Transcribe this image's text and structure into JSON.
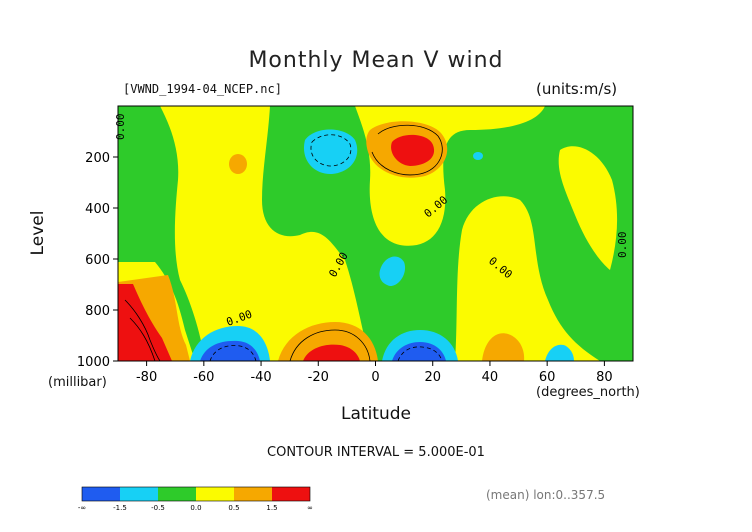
{
  "title": "Monthly Mean V wind",
  "file_label": "[VWND_1994-04_NCEP.nc]",
  "units_label": "(units:m/s)",
  "contour_interval": "CONTOUR INTERVAL = 5.000E-01",
  "mean_note": "(mean) lon:0..357.5",
  "contour_labels": [
    "0.00",
    "0.00",
    "0.00",
    "0.00",
    "0.00",
    "0.00"
  ],
  "colors": {
    "blue": "#1f5cf0",
    "cyan": "#17d0f5",
    "green": "#2ecb2a",
    "yellow": "#fbfb00",
    "orange": "#f6a800",
    "red": "#ee1010"
  },
  "chart_data": {
    "type": "heatmap",
    "title": "Monthly Mean V wind",
    "xlabel": "Latitude",
    "xunit": "(degrees_north)",
    "ylabel": "Level",
    "yunit": "(millibar)",
    "xlim": [
      -90,
      90
    ],
    "ylim": [
      1000,
      0
    ],
    "x_ticks": [
      -80,
      -60,
      -40,
      -20,
      0,
      20,
      40,
      60,
      80
    ],
    "y_ticks": [
      200,
      400,
      600,
      800,
      1000
    ],
    "colorbar": {
      "levels": [
        "-∞",
        "-1.5",
        "-0.5",
        "0.0",
        "0.5",
        "1.5",
        "∞"
      ],
      "colors": [
        "#1f5cf0",
        "#17d0f5",
        "#2ecb2a",
        "#fbfb00",
        "#f6a800",
        "#ee1010"
      ]
    },
    "regions": [
      {
        "name": "v-max-upper",
        "lat": 12,
        "level": 175,
        "value": 2.0
      },
      {
        "name": "v-min-upper",
        "lat": -17,
        "level": 165,
        "value": -1.0
      },
      {
        "name": "v-max-surface",
        "lat": -15,
        "level": 980,
        "value": 2.0
      },
      {
        "name": "v-min-surface-a",
        "lat": -48,
        "level": 970,
        "value": -2.0
      },
      {
        "name": "v-min-surface-b",
        "lat": 15,
        "level": 970,
        "value": -2.0
      },
      {
        "name": "v-max-polar",
        "lat": -85,
        "level": 880,
        "value": 3.0
      }
    ]
  }
}
